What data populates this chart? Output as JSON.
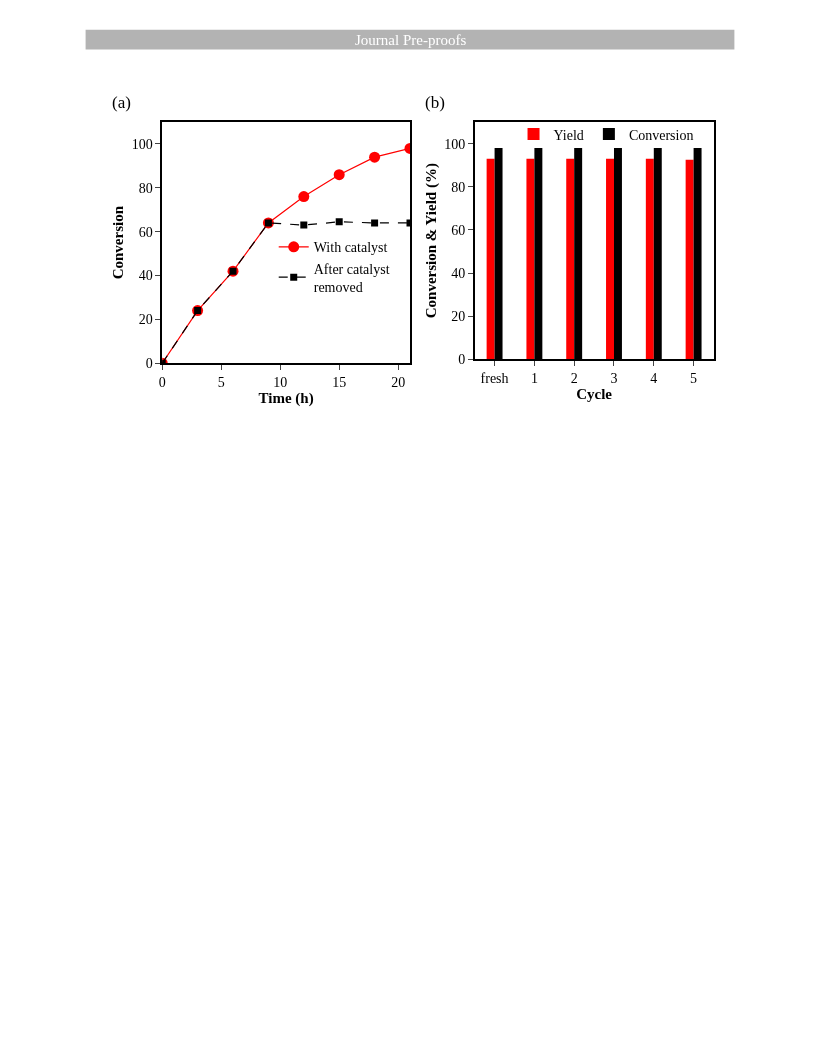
{
  "chart_data": [
    {
      "type": "line",
      "title": "(a)",
      "xlabel": "Time (h)",
      "ylabel": "Conversion",
      "annotations": [
        "Journal Pre-proofs"
      ],
      "xlim": [
        0,
        21
      ],
      "xticks": [
        0,
        5,
        10,
        15,
        20
      ],
      "ylim": [
        0,
        110
      ],
      "yticks": [
        0,
        20,
        40,
        60,
        80,
        100
      ],
      "legend": "right",
      "series": [
        {
          "name": "With catalyst",
          "color": "#ff0000",
          "marker": "circle",
          "line_style": "solid",
          "x": [
            0,
            3,
            6,
            9,
            12,
            15,
            18,
            21
          ],
          "values": [
            0,
            24,
            42,
            64,
            76,
            86,
            94,
            98
          ]
        },
        {
          "name": "After catalyst removed",
          "color": "#000000",
          "marker": "square",
          "line_style": "dashed",
          "x": [
            0,
            3,
            6,
            9,
            12,
            15,
            18,
            21
          ],
          "values": [
            0,
            24,
            42,
            64,
            63,
            64.5,
            64,
            64
          ]
        }
      ]
    },
    {
      "type": "bar",
      "title": "(b)",
      "xlabel": "Cycle",
      "ylabel": "Conversion & Yield (%)",
      "categories": [
        "fresh",
        "1",
        "2",
        "3",
        "4",
        "5"
      ],
      "ylim": [
        0,
        110
      ],
      "yticks": [
        0,
        20,
        40,
        60,
        80,
        100
      ],
      "legend": "top",
      "series": [
        {
          "name": "Yield",
          "color": "#ff0000",
          "values": [
            93,
            93,
            93,
            93,
            93,
            92.5
          ]
        },
        {
          "name": "Conversion",
          "color": "#000000",
          "values": [
            98,
            98,
            98,
            98,
            98,
            98
          ]
        }
      ]
    }
  ]
}
